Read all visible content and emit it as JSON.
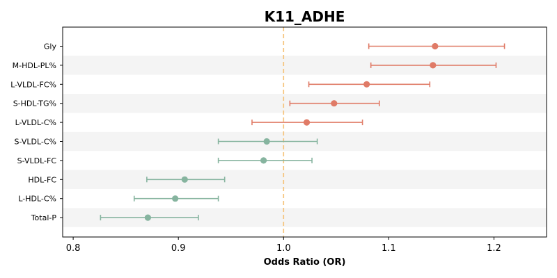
{
  "chart_data": {
    "type": "forest",
    "title": "K11_ADHE",
    "xlabel": "Odds Ratio (OR)",
    "ylabel": "",
    "xlim": [
      0.79,
      1.25
    ],
    "xticks": [
      0.8,
      0.9,
      1.0,
      1.1,
      1.2
    ],
    "xtick_labels": [
      "0.8",
      "0.9",
      "1.0",
      "1.1",
      "1.2"
    ],
    "reference_line": 1.0,
    "grid": false,
    "row_striping": true,
    "colors": {
      "positive": "#e07b67",
      "negative": "#86b49f",
      "reference": "#f5c27a",
      "stripe": "#f4f4f4"
    },
    "categories": [
      "Gly",
      "M-HDL-PL%",
      "L-VLDL-FC%",
      "S-HDL-TG%",
      "L-VLDL-C%",
      "S-VLDL-C%",
      "S-VLDL-FC",
      "HDL-FC",
      "L-HDL-C%",
      "Total-P"
    ],
    "or": [
      1.144,
      1.142,
      1.079,
      1.048,
      1.022,
      0.984,
      0.981,
      0.906,
      0.897,
      0.871
    ],
    "ci_low": [
      1.081,
      1.083,
      1.024,
      1.006,
      0.97,
      0.938,
      0.938,
      0.87,
      0.858,
      0.826
    ],
    "ci_high": [
      1.21,
      1.202,
      1.139,
      1.091,
      1.075,
      1.032,
      1.027,
      0.944,
      0.938,
      0.919
    ]
  }
}
